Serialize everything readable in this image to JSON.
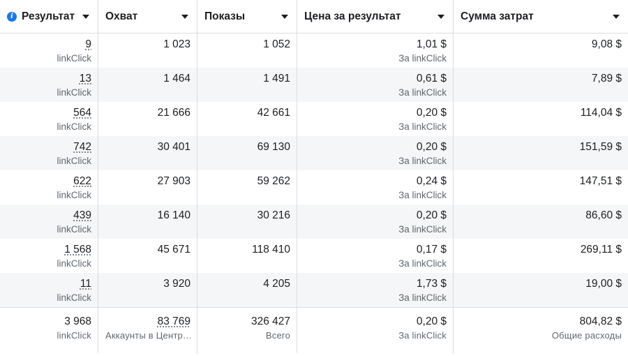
{
  "columns": [
    {
      "label": "Результат",
      "info": "i"
    },
    {
      "label": "Охват"
    },
    {
      "label": "Показы"
    },
    {
      "label": "Цена за результат"
    },
    {
      "label": "Сумма затрат"
    }
  ],
  "rows": [
    {
      "result": "9",
      "result_type": "linkClick",
      "reach": "1 023",
      "impressions": "1 052",
      "cpr": "1,01 $",
      "cpr_type": "За linkClick",
      "spend": "9,08 $"
    },
    {
      "result": "13",
      "result_type": "linkClick",
      "reach": "1 464",
      "impressions": "1 491",
      "cpr": "0,61 $",
      "cpr_type": "За linkClick",
      "spend": "7,89 $"
    },
    {
      "result": "564",
      "result_type": "linkClick",
      "reach": "21 666",
      "impressions": "42 661",
      "cpr": "0,20 $",
      "cpr_type": "За linkClick",
      "spend": "114,04 $"
    },
    {
      "result": "742",
      "result_type": "linkClick",
      "reach": "30 401",
      "impressions": "69 130",
      "cpr": "0,20 $",
      "cpr_type": "За linkClick",
      "spend": "151,59 $"
    },
    {
      "result": "622",
      "result_type": "linkClick",
      "reach": "27 903",
      "impressions": "59 262",
      "cpr": "0,24 $",
      "cpr_type": "За linkClick",
      "spend": "147,51 $"
    },
    {
      "result": "439",
      "result_type": "linkClick",
      "reach": "16 140",
      "impressions": "30 216",
      "cpr": "0,20 $",
      "cpr_type": "За linkClick",
      "spend": "86,60 $"
    },
    {
      "result": "1 568",
      "result_type": "linkClick",
      "reach": "45 671",
      "impressions": "118 410",
      "cpr": "0,17 $",
      "cpr_type": "За linkClick",
      "spend": "269,11 $"
    },
    {
      "result": "11",
      "result_type": "linkClick",
      "reach": "3 920",
      "impressions": "4 205",
      "cpr": "1,73 $",
      "cpr_type": "За linkClick",
      "spend": "19,00 $"
    }
  ],
  "totals": {
    "result": "3 968",
    "result_type": "linkClick",
    "reach": "83 769",
    "reach_sub": "Аккаунты в Центр…",
    "impressions": "326 427",
    "impressions_sub": "Всего",
    "cpr": "0,20 $",
    "cpr_sub": "За linkClick",
    "spend": "804,82 $",
    "spend_sub": "Общие расходы"
  }
}
